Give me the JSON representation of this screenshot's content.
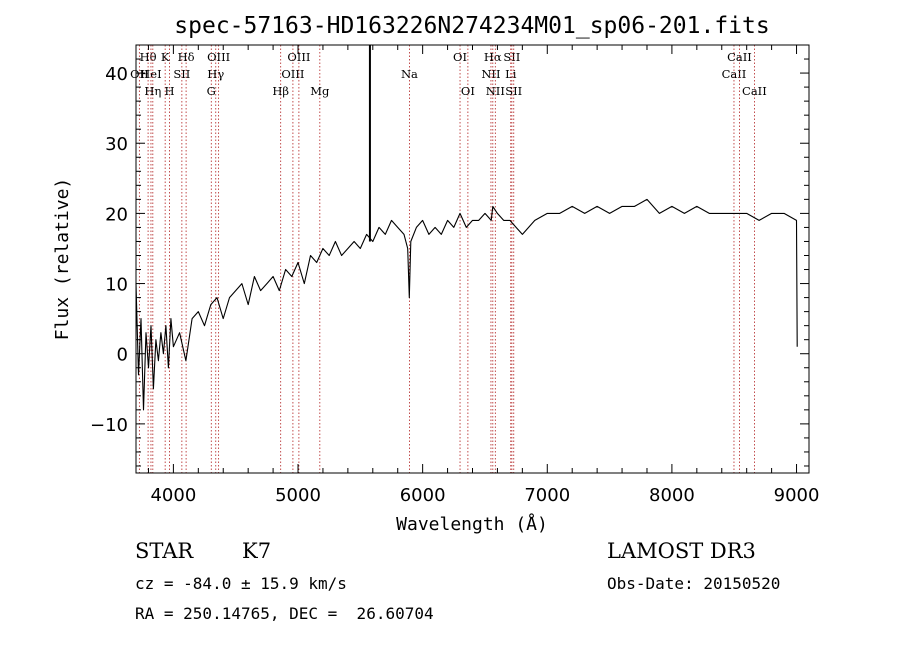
{
  "chart_data": {
    "type": "line",
    "title": "spec-57163-HD163226N274234M01_sp06-201.fits",
    "xlabel": "Wavelength (Å)",
    "ylabel": "Flux (relative)",
    "xlim": [
      3700,
      9100
    ],
    "ylim": [
      -17,
      44
    ],
    "x_ticks": [
      4000,
      5000,
      6000,
      7000,
      8000,
      9000
    ],
    "y_ticks": [
      -10,
      0,
      10,
      20,
      30,
      40
    ],
    "grid": false,
    "series": [
      {
        "color": "#000000",
        "x": [
          3700,
          3720,
          3740,
          3760,
          3780,
          3800,
          3820,
          3840,
          3860,
          3880,
          3900,
          3920,
          3940,
          3960,
          3980,
          4000,
          4050,
          4100,
          4150,
          4200,
          4250,
          4300,
          4350,
          4400,
          4450,
          4500,
          4550,
          4600,
          4650,
          4700,
          4750,
          4800,
          4850,
          4900,
          4950,
          5000,
          5050,
          5100,
          5150,
          5200,
          5250,
          5300,
          5350,
          5400,
          5450,
          5500,
          5550,
          5600,
          5650,
          5700,
          5750,
          5800,
          5850,
          5880,
          5893,
          5905,
          5950,
          6000,
          6050,
          6100,
          6150,
          6200,
          6250,
          6300,
          6350,
          6400,
          6450,
          6500,
          6550,
          6563,
          6600,
          6650,
          6700,
          6750,
          6800,
          6850,
          6900,
          7000,
          7100,
          7200,
          7300,
          7400,
          7500,
          7600,
          7700,
          7800,
          7900,
          8000,
          8100,
          8200,
          8300,
          8400,
          8500,
          8600,
          8700,
          8800,
          8900,
          9000,
          9005
        ],
        "y": [
          10,
          -3,
          5,
          -8,
          3,
          -2,
          4,
          -5,
          2,
          -1,
          3,
          0,
          4,
          -2,
          5,
          1,
          3,
          -1,
          5,
          6,
          4,
          7,
          8,
          5,
          8,
          9,
          10,
          7,
          11,
          9,
          10,
          11,
          9,
          12,
          11,
          13,
          10,
          14,
          13,
          15,
          14,
          16,
          14,
          15,
          16,
          15,
          17,
          16,
          18,
          17,
          19,
          18,
          17,
          15,
          8,
          16,
          18,
          19,
          17,
          18,
          17,
          19,
          18,
          20,
          18,
          19,
          19,
          20,
          19,
          21,
          20,
          19,
          19,
          18,
          17,
          18,
          19,
          20,
          20,
          21,
          20,
          21,
          20,
          21,
          21,
          22,
          20,
          21,
          20,
          21,
          20,
          20,
          20,
          20,
          19,
          20,
          20,
          19,
          1
        ]
      }
    ],
    "spectral_lines": [
      {
        "name": "Hθ",
        "wavelength": 3797,
        "row": 0
      },
      {
        "name": "OII",
        "wavelength": 3727,
        "row": 1
      },
      {
        "name": "HeI",
        "wavelength": 3820,
        "row": 1
      },
      {
        "name": "Hη",
        "wavelength": 3835,
        "row": 2
      },
      {
        "name": "K",
        "wavelength": 3934,
        "row": 0
      },
      {
        "name": "H",
        "wavelength": 3969,
        "row": 2
      },
      {
        "name": "SII",
        "wavelength": 4068,
        "row": 1
      },
      {
        "name": "Hδ",
        "wavelength": 4102,
        "row": 0
      },
      {
        "name": "G",
        "wavelength": 4304,
        "row": 2
      },
      {
        "name": "Hγ",
        "wavelength": 4340,
        "row": 1
      },
      {
        "name": "OIII",
        "wavelength": 4363,
        "row": 0
      },
      {
        "name": "Hβ",
        "wavelength": 4861,
        "row": 2
      },
      {
        "name": "OIII",
        "wavelength": 4959,
        "row": 1
      },
      {
        "name": "OIII",
        "wavelength": 5007,
        "row": 0
      },
      {
        "name": "Mg",
        "wavelength": 5175,
        "row": 2
      },
      {
        "name": "Na",
        "wavelength": 5894,
        "row": 1
      },
      {
        "name": "OI",
        "wavelength": 6300,
        "row": 0
      },
      {
        "name": "OI",
        "wavelength": 6363,
        "row": 2
      },
      {
        "name": "NII",
        "wavelength": 6548,
        "row": 1
      },
      {
        "name": "Hα",
        "wavelength": 6563,
        "row": 0
      },
      {
        "name": "NII",
        "wavelength": 6583,
        "row": 2
      },
      {
        "name": "Li",
        "wavelength": 6707,
        "row": 1
      },
      {
        "name": "SII",
        "wavelength": 6716,
        "row": 0
      },
      {
        "name": "SII",
        "wavelength": 6731,
        "row": 2
      },
      {
        "name": "CaII",
        "wavelength": 8498,
        "row": 1
      },
      {
        "name": "CaII",
        "wavelength": 8542,
        "row": 0
      },
      {
        "name": "CaII",
        "wavelength": 8662,
        "row": 2
      }
    ],
    "marker_line": {
      "wavelength": 5577
    }
  },
  "info": {
    "object_class": "STAR",
    "subclass": "K7",
    "survey": "LAMOST DR3",
    "redshift_text": "cz = -84.0 ± 15.9 km/s",
    "obs_date_text": "Obs-Date: 20150520",
    "coords_text": "RA = 250.14765, DEC =  26.60704"
  },
  "colors": {
    "line_marker": "#b22222",
    "spectrum": "#000000"
  }
}
